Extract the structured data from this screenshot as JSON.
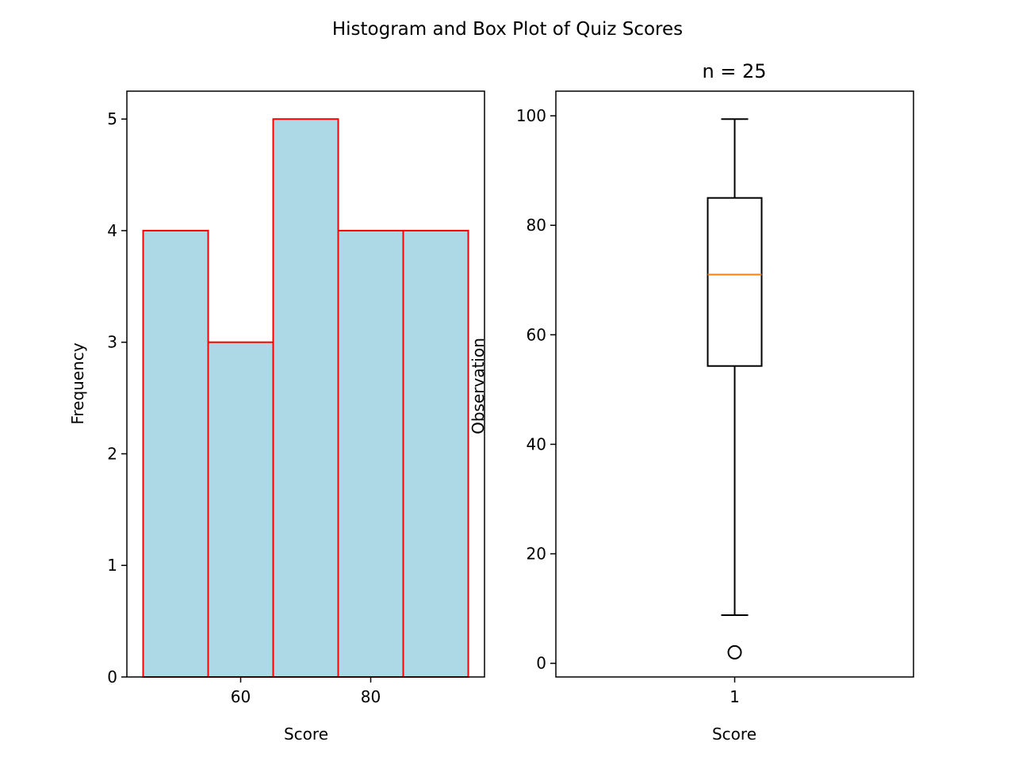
{
  "figure": {
    "suptitle": "Histogram and Box Plot of Quiz Scores"
  },
  "chart_data": [
    {
      "type": "histogram",
      "title": "",
      "xlabel": "Score",
      "ylabel": "Frequency",
      "xlim": [
        42.5,
        97.5
      ],
      "ylim": [
        0,
        5.25
      ],
      "xticks": [
        60,
        80
      ],
      "yticks": [
        0,
        1,
        2,
        3,
        4,
        5
      ],
      "bins": [
        {
          "start": 45,
          "end": 55,
          "count": 4
        },
        {
          "start": 55,
          "end": 65,
          "count": 3
        },
        {
          "start": 65,
          "end": 75,
          "count": 5
        },
        {
          "start": 75,
          "end": 85,
          "count": 4
        },
        {
          "start": 85,
          "end": 95,
          "count": 4
        }
      ],
      "bar_fill": "#add8e6",
      "bar_edge": "#ff0000",
      "grid": false
    },
    {
      "type": "box",
      "title": "n = 25",
      "xlabel": "Score",
      "ylabel": "Observation",
      "ylim": [
        -2.5,
        104.5
      ],
      "yticks": [
        0,
        20,
        40,
        60,
        80,
        100
      ],
      "xticks": [
        "1"
      ],
      "box": {
        "whisker_low": 8.8,
        "q1": 54.3,
        "median": 71,
        "q3": 85,
        "whisker_high": 99.4,
        "outliers": [
          2
        ]
      },
      "median_color": "#ff7f0e",
      "grid": false
    }
  ]
}
